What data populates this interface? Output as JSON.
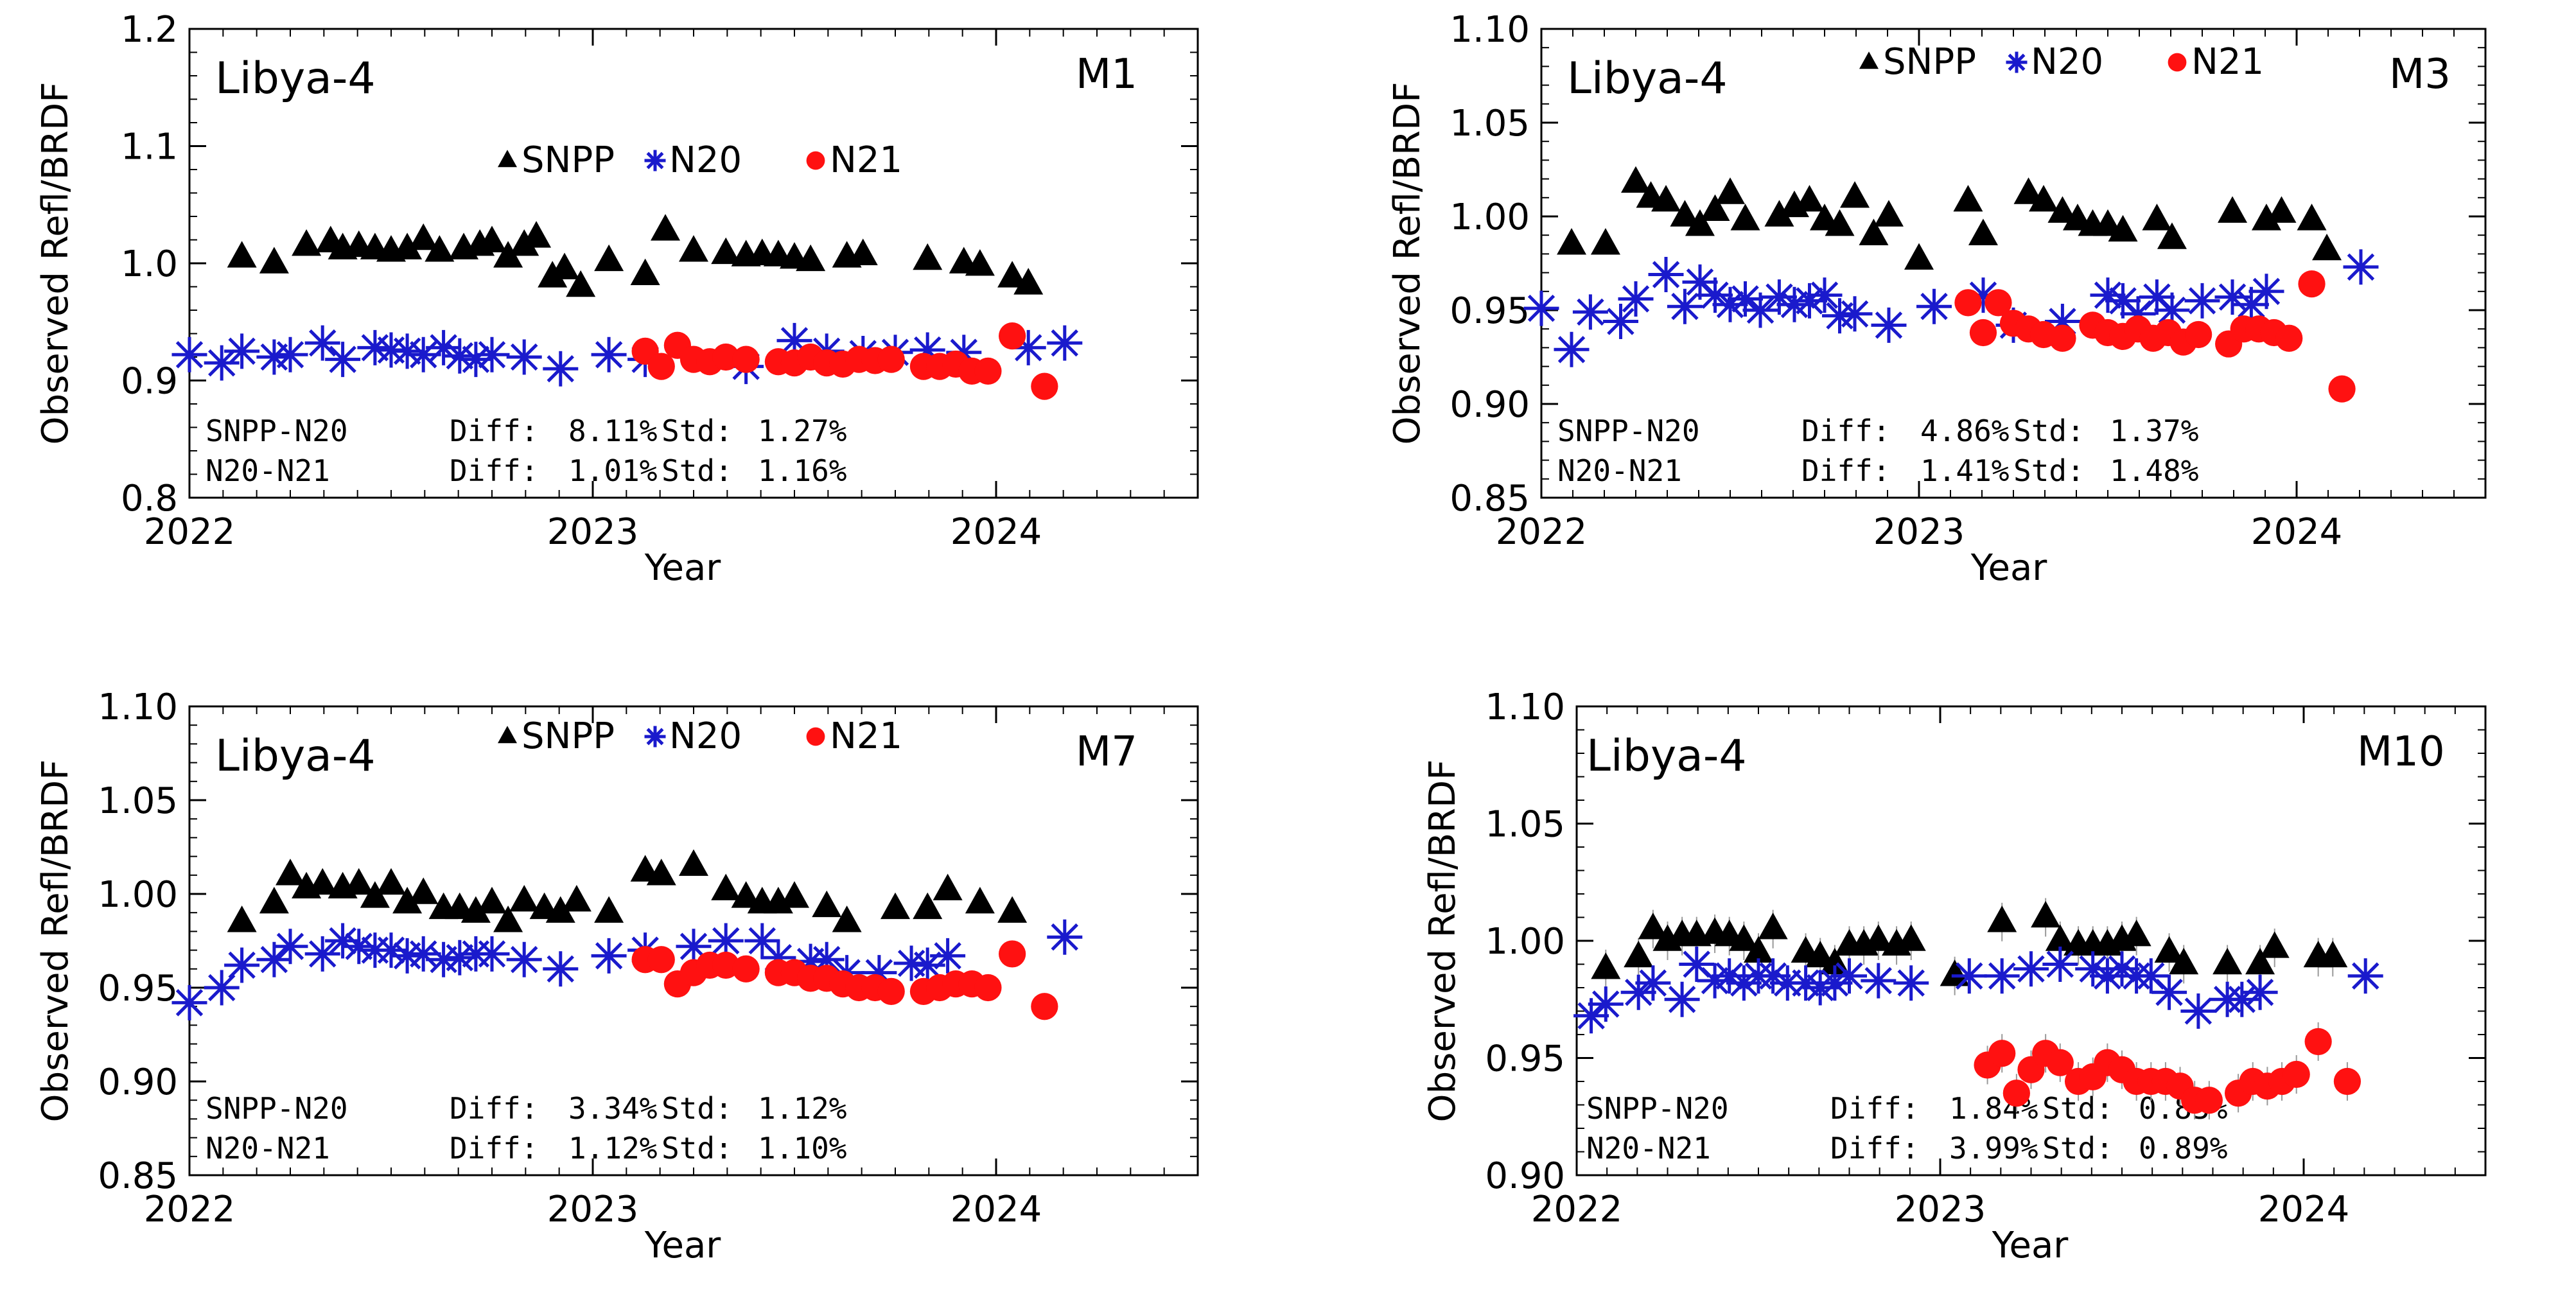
{
  "figure": {
    "xlabel": "Year",
    "ylabel": "Observed Refl/BRDF"
  },
  "chart_data": [
    {
      "type": "scatter",
      "band": "M1",
      "site": "Libya-4",
      "xlabel": "Year",
      "ylabel": "Observed Refl/BRDF",
      "xlim": [
        2022.0,
        2024.5
      ],
      "ylim": [
        0.8,
        1.2
      ],
      "xticks": [
        "2022",
        "2023",
        "2024"
      ],
      "yticks": [
        "0.8",
        "0.9",
        "1.0",
        "1.1",
        "1.2"
      ],
      "legend": [
        "SNPP",
        "N20",
        "N21"
      ],
      "stats": [
        {
          "pair": "SNPP-N20",
          "diff_label": "Diff:",
          "diff": "8.11%",
          "std_label": "Std:",
          "std": "1.27%"
        },
        {
          "pair": "N20-N21",
          "diff_label": "Diff:",
          "diff": "1.01%",
          "std_label": "Std:",
          "std": "1.16%"
        }
      ],
      "series": [
        {
          "name": "SNPP",
          "color": "#000000",
          "marker": "triangle",
          "x": [
            2022.13,
            2022.21,
            2022.29,
            2022.35,
            2022.38,
            2022.42,
            2022.46,
            2022.5,
            2022.54,
            2022.58,
            2022.62,
            2022.68,
            2022.72,
            2022.75,
            2022.79,
            2022.83,
            2022.86,
            2022.9,
            2022.93,
            2022.97,
            2023.04,
            2023.13,
            2023.18,
            2023.25,
            2023.33,
            2023.38,
            2023.42,
            2023.46,
            2023.5,
            2023.54,
            2023.63,
            2023.67,
            2023.83,
            2023.92,
            2023.96,
            2024.04,
            2024.08
          ],
          "y": [
            1.005,
            1.0,
            1.015,
            1.018,
            1.012,
            1.014,
            1.012,
            1.01,
            1.012,
            1.02,
            1.01,
            1.012,
            1.015,
            1.018,
            1.005,
            1.015,
            1.022,
            0.988,
            0.995,
            0.98,
            1.002,
            0.99,
            1.028,
            1.01,
            1.008,
            1.006,
            1.007,
            1.006,
            1.004,
            1.002,
            1.005,
            1.007,
            1.003,
            1.0,
            0.998,
            0.988,
            0.982
          ]
        },
        {
          "name": "N20",
          "color": "#1a1acc",
          "marker": "star",
          "x": [
            2022.0,
            2022.08,
            2022.13,
            2022.21,
            2022.25,
            2022.33,
            2022.38,
            2022.46,
            2022.5,
            2022.54,
            2022.58,
            2022.63,
            2022.67,
            2022.71,
            2022.75,
            2022.83,
            2022.92,
            2023.04,
            2023.13,
            2023.38,
            2023.5,
            2023.58,
            2023.67,
            2023.75,
            2023.83,
            2023.92,
            2024.08,
            2024.17
          ],
          "y": [
            0.922,
            0.915,
            0.925,
            0.92,
            0.922,
            0.932,
            0.918,
            0.928,
            0.926,
            0.925,
            0.922,
            0.928,
            0.921,
            0.918,
            0.922,
            0.92,
            0.91,
            0.922,
            0.918,
            0.912,
            0.934,
            0.925,
            0.923,
            0.924,
            0.926,
            0.924,
            0.928,
            0.932
          ]
        },
        {
          "name": "N21",
          "color": "#ff1111",
          "marker": "circle",
          "x": [
            2023.13,
            2023.17,
            2023.21,
            2023.25,
            2023.29,
            2023.33,
            2023.38,
            2023.46,
            2023.5,
            2023.54,
            2023.58,
            2023.62,
            2023.66,
            2023.7,
            2023.74,
            2023.82,
            2023.86,
            2023.9,
            2023.94,
            2023.98,
            2024.04,
            2024.12
          ],
          "y": [
            0.925,
            0.912,
            0.93,
            0.918,
            0.916,
            0.92,
            0.918,
            0.916,
            0.915,
            0.92,
            0.915,
            0.914,
            0.918,
            0.917,
            0.918,
            0.912,
            0.912,
            0.914,
            0.908,
            0.908,
            0.938,
            0.895
          ]
        }
      ]
    },
    {
      "type": "scatter",
      "band": "M3",
      "site": "Libya-4",
      "xlabel": "Year",
      "ylabel": "Observed Refl/BRDF",
      "xlim": [
        2022.0,
        2024.5
      ],
      "ylim": [
        0.85,
        1.1
      ],
      "xticks": [
        "2022",
        "2023",
        "2024"
      ],
      "yticks": [
        "0.85",
        "0.90",
        "0.95",
        "1.00",
        "1.05",
        "1.10"
      ],
      "legend": [
        "SNPP",
        "N20",
        "N21"
      ],
      "stats": [
        {
          "pair": "SNPP-N20",
          "diff_label": "Diff:",
          "diff": "4.86%",
          "std_label": "Std:",
          "std": "1.37%"
        },
        {
          "pair": "N20-N21",
          "diff_label": "Diff:",
          "diff": "1.41%",
          "std_label": "Std:",
          "std": "1.48%"
        }
      ],
      "series": [
        {
          "name": "SNPP",
          "color": "#000000",
          "marker": "triangle",
          "x": [
            2022.08,
            2022.17,
            2022.25,
            2022.29,
            2022.33,
            2022.38,
            2022.42,
            2022.46,
            2022.5,
            2022.54,
            2022.63,
            2022.67,
            2022.71,
            2022.75,
            2022.79,
            2022.83,
            2022.88,
            2022.92,
            2023.0,
            2023.13,
            2023.17,
            2023.29,
            2023.33,
            2023.38,
            2023.42,
            2023.46,
            2023.5,
            2023.54,
            2023.63,
            2023.67,
            2023.83,
            2023.92,
            2023.96,
            2024.04,
            2024.08
          ],
          "y": [
            0.985,
            0.985,
            1.018,
            1.01,
            1.008,
            1.0,
            0.995,
            1.003,
            1.012,
            0.998,
            1.0,
            1.005,
            1.008,
            0.998,
            0.995,
            1.01,
            0.99,
            1.0,
            0.977,
            1.008,
            0.99,
            1.012,
            1.008,
            1.002,
            0.998,
            0.995,
            0.995,
            0.992,
            0.998,
            0.988,
            1.002,
            0.998,
            1.002,
            0.998,
            0.982
          ]
        },
        {
          "name": "N20",
          "color": "#1a1acc",
          "marker": "star",
          "x": [
            2022.0,
            2022.08,
            2022.13,
            2022.21,
            2022.25,
            2022.33,
            2022.38,
            2022.42,
            2022.46,
            2022.5,
            2022.54,
            2022.58,
            2022.63,
            2022.67,
            2022.71,
            2022.75,
            2022.79,
            2022.83,
            2022.92,
            2023.04,
            2023.17,
            2023.25,
            2023.38,
            2023.5,
            2023.54,
            2023.58,
            2023.63,
            2023.67,
            2023.75,
            2023.83,
            2023.88,
            2023.92,
            2024.17
          ],
          "y": [
            0.951,
            0.929,
            0.949,
            0.944,
            0.956,
            0.969,
            0.952,
            0.965,
            0.958,
            0.953,
            0.956,
            0.95,
            0.957,
            0.953,
            0.955,
            0.958,
            0.947,
            0.948,
            0.942,
            0.952,
            0.958,
            0.942,
            0.944,
            0.958,
            0.955,
            0.948,
            0.957,
            0.95,
            0.955,
            0.957,
            0.953,
            0.96,
            0.973
          ]
        },
        {
          "name": "N21",
          "color": "#ff1111",
          "marker": "circle",
          "x": [
            2023.13,
            2023.17,
            2023.21,
            2023.25,
            2023.29,
            2023.33,
            2023.38,
            2023.46,
            2023.5,
            2023.54,
            2023.58,
            2023.62,
            2023.66,
            2023.7,
            2023.74,
            2023.82,
            2023.86,
            2023.9,
            2023.94,
            2023.98,
            2024.04,
            2024.12
          ],
          "y": [
            0.954,
            0.938,
            0.954,
            0.943,
            0.94,
            0.937,
            0.935,
            0.942,
            0.938,
            0.936,
            0.94,
            0.935,
            0.938,
            0.933,
            0.937,
            0.932,
            0.94,
            0.94,
            0.938,
            0.935,
            0.964,
            0.908
          ]
        }
      ]
    },
    {
      "type": "scatter",
      "band": "M7",
      "site": "Libya-4",
      "xlabel": "Year",
      "ylabel": "Observed Refl/BRDF",
      "xlim": [
        2022.0,
        2024.5
      ],
      "ylim": [
        0.85,
        1.1
      ],
      "xticks": [
        "2022",
        "2023",
        "2024"
      ],
      "yticks": [
        "0.85",
        "0.90",
        "0.95",
        "1.00",
        "1.05",
        "1.10"
      ],
      "legend": [
        "SNPP",
        "N20",
        "N21"
      ],
      "stats": [
        {
          "pair": "SNPP-N20",
          "diff_label": "Diff:",
          "diff": "3.34%",
          "std_label": "Std:",
          "std": "1.12%"
        },
        {
          "pair": "N20-N21",
          "diff_label": "Diff:",
          "diff": "1.12%",
          "std_label": "Std:",
          "std": "1.10%"
        }
      ],
      "series": [
        {
          "name": "SNPP",
          "color": "#000000",
          "marker": "triangle",
          "x": [
            2022.13,
            2022.21,
            2022.25,
            2022.29,
            2022.33,
            2022.38,
            2022.42,
            2022.46,
            2022.5,
            2022.54,
            2022.58,
            2022.63,
            2022.67,
            2022.71,
            2022.75,
            2022.79,
            2022.83,
            2022.88,
            2022.92,
            2022.96,
            2023.04,
            2023.13,
            2023.17,
            2023.25,
            2023.33,
            2023.38,
            2023.42,
            2023.46,
            2023.5,
            2023.58,
            2023.63,
            2023.75,
            2023.83,
            2023.88,
            2023.96,
            2024.04
          ],
          "y": [
            0.985,
            0.995,
            1.01,
            1.003,
            1.005,
            1.003,
            1.005,
            0.998,
            1.005,
            0.995,
            1.0,
            0.992,
            0.992,
            0.99,
            0.995,
            0.985,
            0.996,
            0.992,
            0.99,
            0.996,
            0.99,
            1.012,
            1.01,
            1.015,
            1.002,
            0.998,
            0.995,
            0.995,
            0.998,
            0.993,
            0.985,
            0.992,
            0.992,
            1.002,
            0.995,
            0.99
          ]
        },
        {
          "name": "N20",
          "color": "#1a1acc",
          "marker": "star",
          "x": [
            2022.0,
            2022.08,
            2022.13,
            2022.21,
            2022.25,
            2022.33,
            2022.38,
            2022.42,
            2022.46,
            2022.5,
            2022.54,
            2022.58,
            2022.63,
            2022.67,
            2022.71,
            2022.75,
            2022.83,
            2022.92,
            2023.04,
            2023.13,
            2023.25,
            2023.33,
            2023.42,
            2023.46,
            2023.54,
            2023.58,
            2023.63,
            2023.71,
            2023.79,
            2023.83,
            2023.88,
            2024.17
          ],
          "y": [
            0.942,
            0.95,
            0.962,
            0.965,
            0.972,
            0.968,
            0.975,
            0.972,
            0.97,
            0.97,
            0.967,
            0.968,
            0.965,
            0.966,
            0.968,
            0.968,
            0.965,
            0.96,
            0.967,
            0.97,
            0.972,
            0.975,
            0.975,
            0.966,
            0.964,
            0.965,
            0.958,
            0.958,
            0.963,
            0.962,
            0.967,
            0.977
          ]
        },
        {
          "name": "N21",
          "color": "#ff1111",
          "marker": "circle",
          "x": [
            2023.13,
            2023.17,
            2023.21,
            2023.25,
            2023.29,
            2023.33,
            2023.38,
            2023.46,
            2023.5,
            2023.54,
            2023.58,
            2023.62,
            2023.66,
            2023.7,
            2023.74,
            2023.82,
            2023.86,
            2023.9,
            2023.94,
            2023.98,
            2024.04,
            2024.12
          ],
          "y": [
            0.965,
            0.965,
            0.952,
            0.958,
            0.962,
            0.962,
            0.96,
            0.958,
            0.958,
            0.955,
            0.955,
            0.952,
            0.95,
            0.95,
            0.948,
            0.948,
            0.95,
            0.952,
            0.952,
            0.95,
            0.968,
            0.94
          ]
        }
      ]
    },
    {
      "type": "scatter",
      "band": "M10",
      "site": "Libya-4",
      "xlabel": "Year",
      "ylabel": "Observed Refl/BRDF",
      "xlim": [
        2022.0,
        2024.5
      ],
      "ylim": [
        0.9,
        1.1
      ],
      "xticks": [
        "2022",
        "2023",
        "2024"
      ],
      "yticks": [
        "0.90",
        "0.95",
        "1.00",
        "1.05",
        "1.10"
      ],
      "legend": [],
      "stats": [
        {
          "pair": "SNPP-N20",
          "diff_label": "Diff:",
          "diff": "1.84%",
          "std_label": "Std:",
          "std": "0.83%"
        },
        {
          "pair": "N20-N21",
          "diff_label": "Diff:",
          "diff": "3.99%",
          "std_label": "Std:",
          "std": "0.89%"
        }
      ],
      "series": [
        {
          "name": "SNPP",
          "color": "#000000",
          "marker": "triangle",
          "x": [
            2022.08,
            2022.17,
            2022.21,
            2022.25,
            2022.29,
            2022.33,
            2022.38,
            2022.42,
            2022.46,
            2022.5,
            2022.54,
            2022.63,
            2022.67,
            2022.71,
            2022.75,
            2022.79,
            2022.83,
            2022.88,
            2022.92,
            2023.04,
            2023.17,
            2023.29,
            2023.33,
            2023.38,
            2023.42,
            2023.46,
            2023.5,
            2023.54,
            2023.63,
            2023.67,
            2023.79,
            2023.88,
            2023.92,
            2024.04,
            2024.08
          ],
          "y": [
            0.988,
            0.993,
            1.005,
            1.0,
            1.002,
            1.002,
            1.003,
            1.002,
            1.0,
            0.995,
            1.005,
            0.995,
            0.993,
            0.99,
            0.998,
            0.998,
            1.0,
            0.998,
            1.0,
            0.985,
            1.008,
            1.01,
            1.0,
            0.998,
            0.998,
            0.998,
            1.0,
            1.002,
            0.995,
            0.99,
            0.99,
            0.99,
            0.997,
            0.993,
            0.993
          ]
        },
        {
          "name": "N20",
          "color": "#1a1acc",
          "marker": "star",
          "x": [
            2022.04,
            2022.08,
            2022.17,
            2022.21,
            2022.29,
            2022.33,
            2022.38,
            2022.42,
            2022.46,
            2022.5,
            2022.54,
            2022.58,
            2022.63,
            2022.67,
            2022.71,
            2022.75,
            2022.83,
            2022.92,
            2023.08,
            2023.17,
            2023.25,
            2023.33,
            2023.42,
            2023.46,
            2023.5,
            2023.54,
            2023.58,
            2023.63,
            2023.71,
            2023.79,
            2023.83,
            2023.88,
            2024.17
          ],
          "y": [
            0.968,
            0.973,
            0.978,
            0.982,
            0.975,
            0.99,
            0.983,
            0.985,
            0.982,
            0.985,
            0.985,
            0.982,
            0.982,
            0.98,
            0.982,
            0.985,
            0.983,
            0.982,
            0.985,
            0.985,
            0.988,
            0.99,
            0.988,
            0.985,
            0.988,
            0.985,
            0.985,
            0.978,
            0.97,
            0.975,
            0.975,
            0.978,
            0.985
          ]
        },
        {
          "name": "N21",
          "color": "#ff1111",
          "marker": "circle",
          "x": [
            2023.13,
            2023.17,
            2023.21,
            2023.25,
            2023.29,
            2023.33,
            2023.38,
            2023.42,
            2023.46,
            2023.5,
            2023.54,
            2023.58,
            2023.62,
            2023.66,
            2023.7,
            2023.74,
            2023.82,
            2023.86,
            2023.9,
            2023.94,
            2023.98,
            2024.04,
            2024.12
          ],
          "y": [
            0.947,
            0.952,
            0.935,
            0.945,
            0.952,
            0.948,
            0.94,
            0.942,
            0.948,
            0.945,
            0.94,
            0.94,
            0.94,
            0.938,
            0.932,
            0.932,
            0.935,
            0.94,
            0.938,
            0.94,
            0.943,
            0.957,
            0.94
          ]
        }
      ]
    }
  ]
}
